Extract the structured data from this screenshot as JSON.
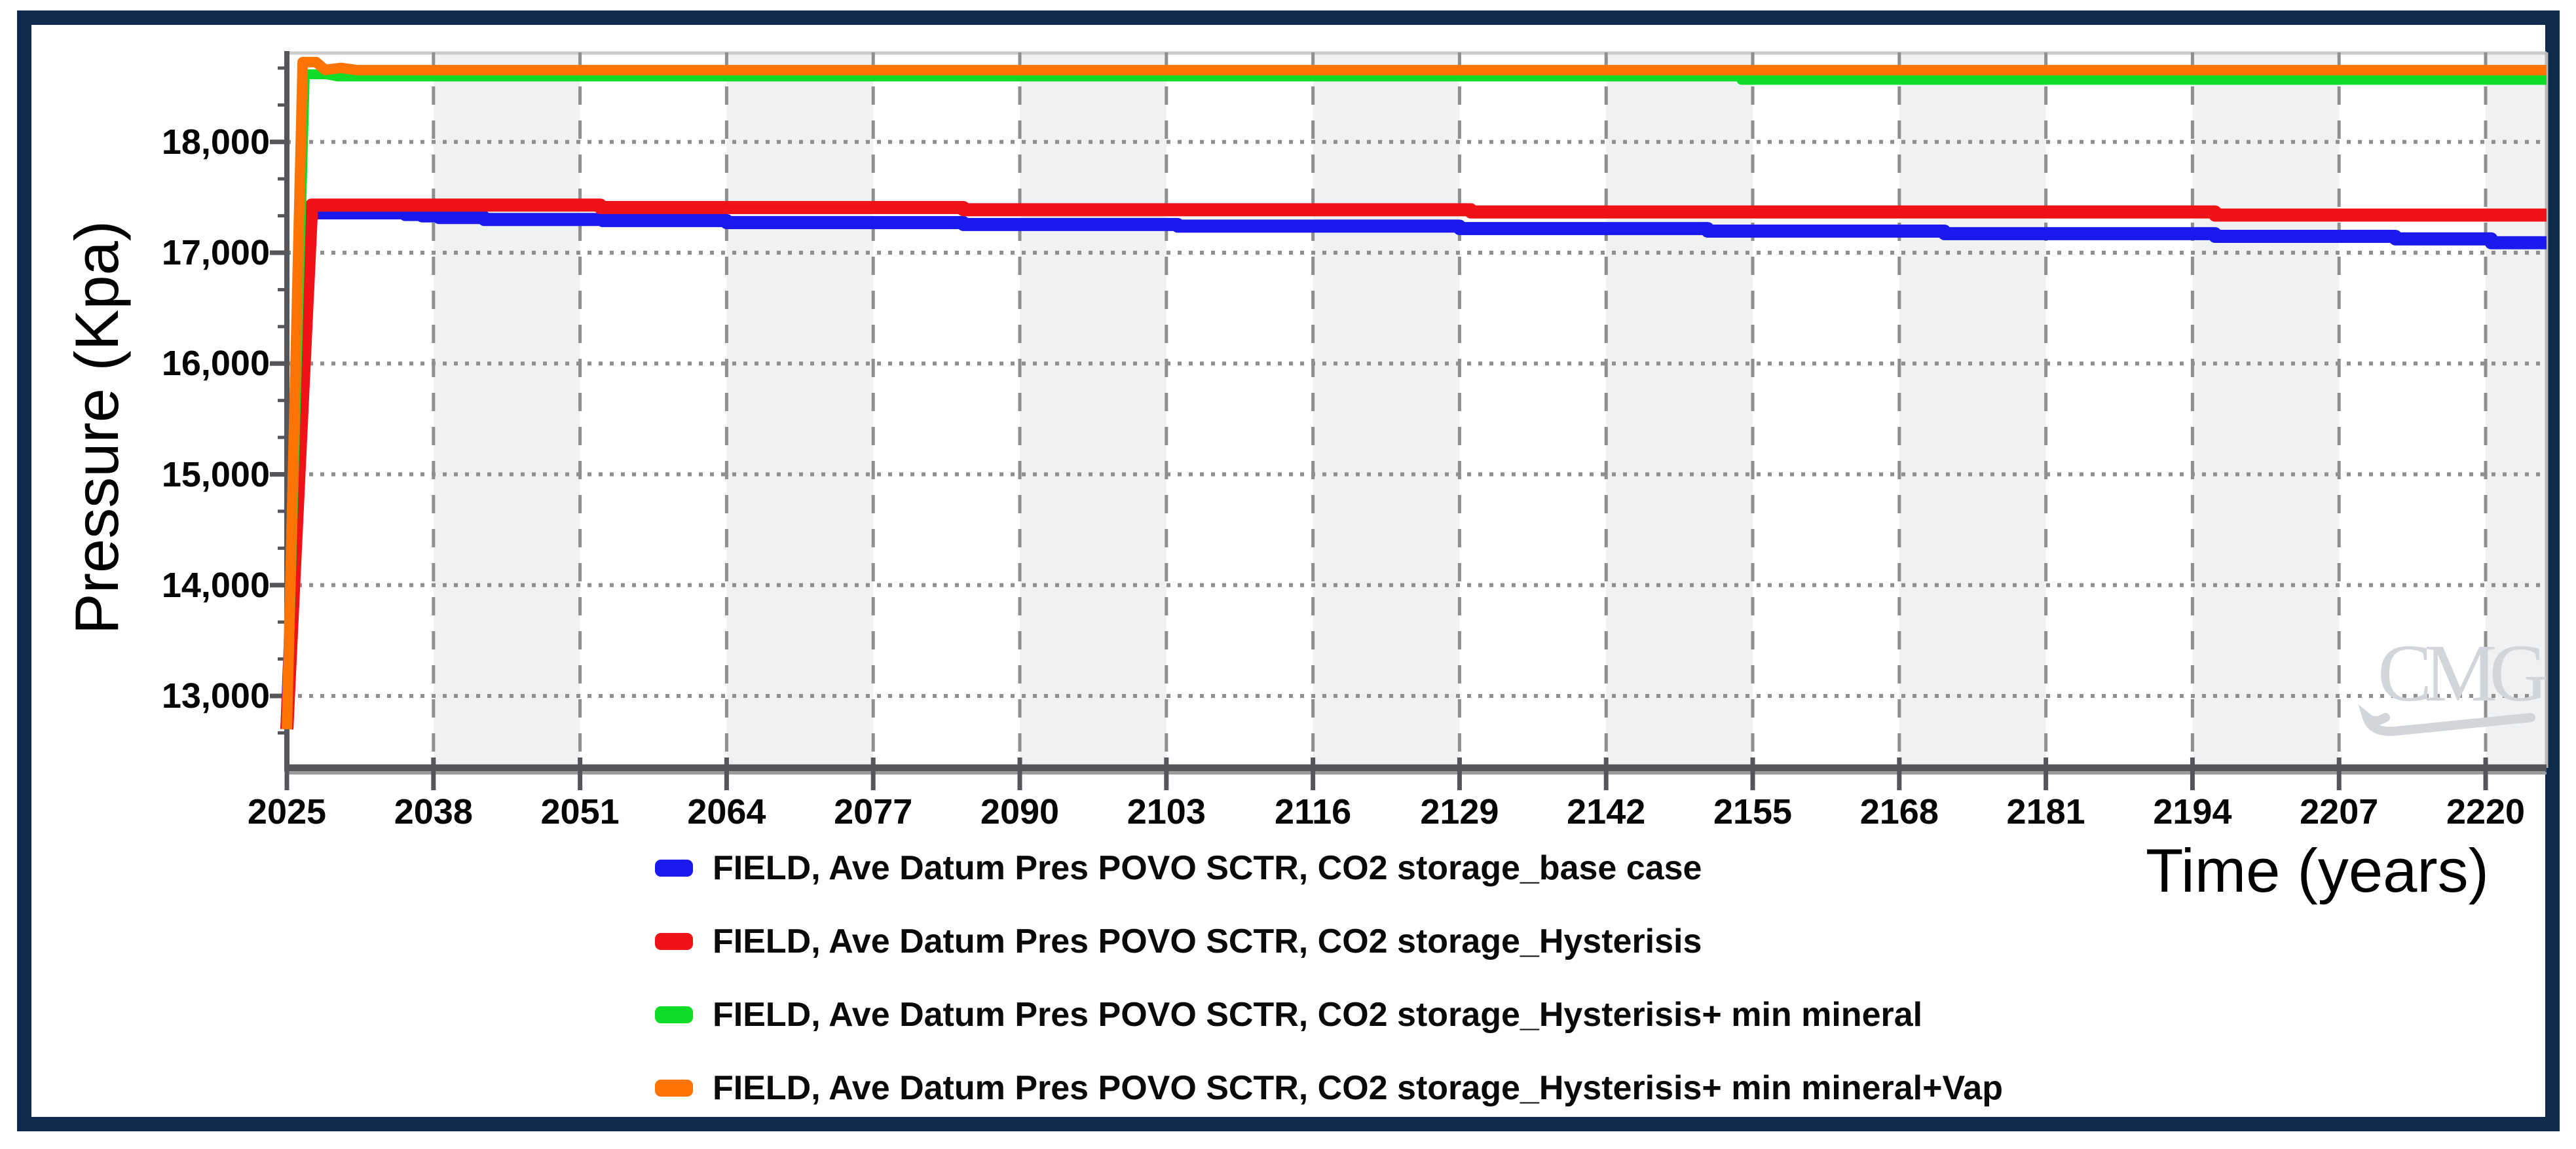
{
  "figure": {
    "border_color": "#0e2a4d",
    "watermark": "CMG"
  },
  "chart_data": {
    "type": "line",
    "title": "",
    "xlabel": "Time (years)",
    "ylabel": "Pressure (Kpa)",
    "xlim": [
      2025,
      2225.4
    ],
    "ylim": [
      12350,
      18820
    ],
    "x_ticks": [
      2025,
      2038,
      2051,
      2064,
      2077,
      2090,
      2103,
      2116,
      2129,
      2142,
      2155,
      2168,
      2181,
      2194,
      2207,
      2220
    ],
    "y_ticks": [
      13000,
      14000,
      15000,
      16000,
      17000,
      18000
    ],
    "y_tick_labels": [
      "13,000",
      "14,000",
      "15,000",
      "16,000",
      "17,000",
      "18,000"
    ],
    "grid": {
      "vertical_style": "dashed",
      "horizontal_style": "dotted",
      "band_fill": "#f0f1f3",
      "grid_color": "#8f8f8f",
      "axis_color": "#55565a"
    },
    "legend_position": "bottom",
    "watermark": "CMG",
    "series": [
      {
        "name": "FIELD, Ave Datum Pres POVO SCTR, CO2 storage_base case",
        "color": "#1a1af0",
        "points": [
          [
            2025,
            12700
          ],
          [
            2026.8,
            17360
          ],
          [
            2035.5,
            17360
          ],
          [
            2035.5,
            17345
          ],
          [
            2037,
            17345
          ],
          [
            2037,
            17332
          ],
          [
            2038.5,
            17332
          ],
          [
            2038.5,
            17318
          ],
          [
            2042.5,
            17318
          ],
          [
            2042.5,
            17300
          ],
          [
            2053,
            17300
          ],
          [
            2053,
            17290
          ],
          [
            2064,
            17290
          ],
          [
            2064,
            17272
          ],
          [
            2085,
            17272
          ],
          [
            2085,
            17255
          ],
          [
            2104,
            17255
          ],
          [
            2104,
            17240
          ],
          [
            2129,
            17240
          ],
          [
            2129,
            17218
          ],
          [
            2151,
            17218
          ],
          [
            2151,
            17195
          ],
          [
            2172,
            17195
          ],
          [
            2172,
            17172
          ],
          [
            2196,
            17172
          ],
          [
            2196,
            17148
          ],
          [
            2212,
            17148
          ],
          [
            2212,
            17125
          ],
          [
            2220.5,
            17125
          ],
          [
            2220.5,
            17090
          ],
          [
            2225.4,
            17090
          ]
        ]
      },
      {
        "name": "FIELD, Ave Datum Pres POVO SCTR, CO2 storage_Hysterisis",
        "color": "#ef1216",
        "points": [
          [
            2025,
            12700
          ],
          [
            2027.2,
            17430
          ],
          [
            2052.8,
            17430
          ],
          [
            2052.8,
            17408
          ],
          [
            2085,
            17408
          ],
          [
            2085,
            17388
          ],
          [
            2130,
            17388
          ],
          [
            2130,
            17368
          ],
          [
            2196,
            17368
          ],
          [
            2196,
            17340
          ],
          [
            2225.4,
            17340
          ]
        ]
      },
      {
        "name": "FIELD, Ave Datum Pres POVO SCTR, CO2 storage_Hysterisis+ min mineral",
        "color": "#0ddd26",
        "points": [
          [
            2025,
            12700
          ],
          [
            2026.6,
            18610
          ],
          [
            2028.5,
            18610
          ],
          [
            2029.5,
            18590
          ],
          [
            2154,
            18590
          ],
          [
            2154,
            18560
          ],
          [
            2225.4,
            18560
          ]
        ]
      },
      {
        "name": "FIELD, Ave Datum Pres POVO SCTR, CO2 storage_Hysterisis+ min mineral+Vap",
        "color": "#fd7404",
        "points": [
          [
            2025,
            12700
          ],
          [
            2026.4,
            18720
          ],
          [
            2027.6,
            18720
          ],
          [
            2028.4,
            18650
          ],
          [
            2029.8,
            18668
          ],
          [
            2031.2,
            18648
          ],
          [
            2225.4,
            18648
          ]
        ]
      }
    ]
  }
}
